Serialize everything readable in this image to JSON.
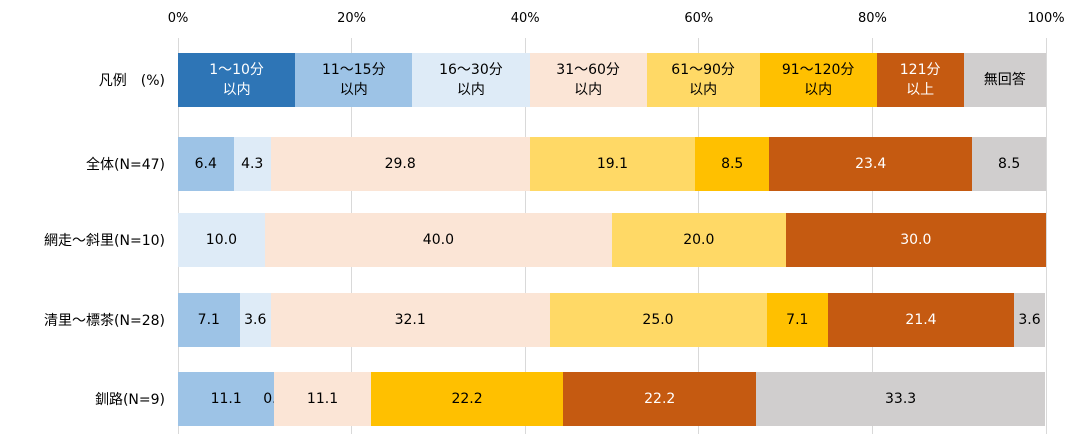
{
  "chart_data": {
    "type": "stacked_bar_h",
    "legend_title": "凡例　(%)",
    "categories": [
      "全体(N=47)",
      "網走～斜里(N=10)",
      "清里～標茶(N=28)",
      "釧路(N=9)"
    ],
    "xlim": [
      0,
      100
    ],
    "xticks": [
      {
        "value": 0,
        "label": "0%"
      },
      {
        "value": 20,
        "label": "20%"
      },
      {
        "value": 40,
        "label": "40%"
      },
      {
        "value": 60,
        "label": "60%"
      },
      {
        "value": 80,
        "label": "80%"
      },
      {
        "value": 100,
        "label": "100%"
      }
    ],
    "grid": true,
    "series": [
      {
        "name": "1～10分\n以内",
        "color": "#2e75b6",
        "label_color": "#ffffff",
        "values": [
          0,
          0,
          0,
          0
        ],
        "value_labels": [
          null,
          null,
          null,
          null
        ]
      },
      {
        "name": "11～15分\n以内",
        "color": "#9dc3e6",
        "label_color": "#000000",
        "values": [
          6.4,
          0,
          7.1,
          11.1
        ],
        "value_labels": [
          "6.4",
          null,
          "7.1",
          "11.1"
        ]
      },
      {
        "name": "16～30分\n以内",
        "color": "#deebf7",
        "label_color": "#000000",
        "values": [
          4.3,
          10.0,
          3.6,
          0.0
        ],
        "value_labels": [
          "4.3",
          "10.0",
          "3.6",
          "0.0"
        ]
      },
      {
        "name": "31～60分\n以内",
        "color": "#fbe5d6",
        "label_color": "#000000",
        "values": [
          29.8,
          40.0,
          32.1,
          11.1
        ],
        "value_labels": [
          "29.8",
          "40.0",
          "32.1",
          "11.1"
        ]
      },
      {
        "name": "61～90分\n以内",
        "color": "#ffd966",
        "label_color": "#000000",
        "values": [
          19.1,
          20.0,
          25.0,
          0
        ],
        "value_labels": [
          "19.1",
          "20.0",
          "25.0",
          null
        ]
      },
      {
        "name": "91～120分\n以内",
        "color": "#ffc000",
        "label_color": "#000000",
        "values": [
          8.5,
          0,
          7.1,
          22.2
        ],
        "value_labels": [
          "8.5",
          null,
          "7.1",
          "22.2"
        ]
      },
      {
        "name": "121分\n以上",
        "color": "#c55a11",
        "label_color": "#ffffff",
        "values": [
          23.4,
          30.0,
          21.4,
          22.2
        ],
        "value_labels": [
          "23.4",
          "30.0",
          "21.4",
          "22.2"
        ]
      },
      {
        "name": "無回答",
        "color": "#d0cece",
        "label_color": "#000000",
        "values": [
          8.5,
          0,
          3.6,
          33.3
        ],
        "value_labels": [
          "8.5",
          null,
          "3.6",
          "33.3"
        ]
      }
    ]
  }
}
